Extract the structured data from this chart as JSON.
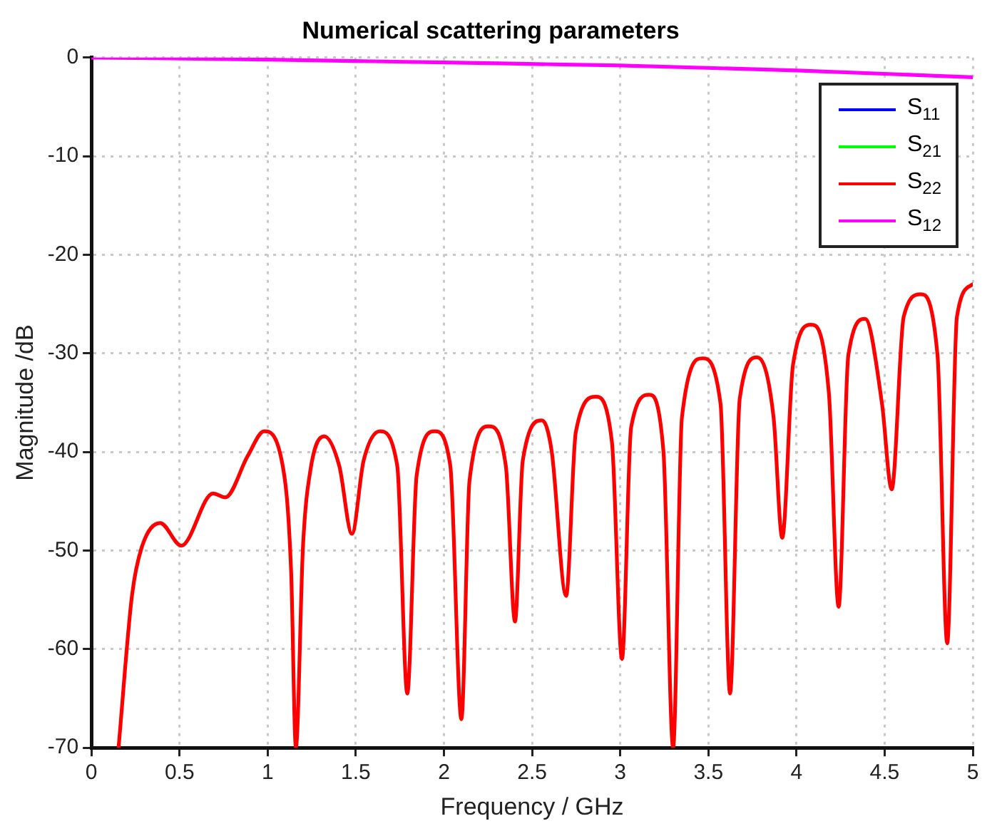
{
  "chart_data": {
    "type": "line",
    "title": "Numerical scattering parameters",
    "xlabel": "Frequency / GHz",
    "ylabel": "Magnitude /dB",
    "xlim": [
      0,
      5
    ],
    "xticks": [
      0,
      0.5,
      1,
      1.5,
      2,
      2.5,
      3,
      3.5,
      4,
      4.5,
      5
    ],
    "ylim": [
      -70,
      0
    ],
    "yticks": [
      -70,
      -60,
      -50,
      -40,
      -30,
      -20,
      -10,
      0
    ],
    "grid": true,
    "legend": "top right",
    "marker": "none",
    "line_style": "solid",
    "series": [
      {
        "name": "S$_{11}$",
        "color": "#0000ff"
      },
      {
        "name": "S$_{21}$",
        "color": "#00ff00"
      },
      {
        "name": "S$_{22}$",
        "color": "#ff0000",
        "x": [
          0.154,
          0.23,
          0.285,
          0.39,
          0.51,
          0.69,
          0.76,
          0.887,
          0.98,
          1.08,
          1.133,
          1.16,
          1.2,
          1.242,
          1.32,
          1.406,
          1.478,
          1.544,
          1.636,
          1.735,
          1.792,
          1.845,
          1.948,
          2.036,
          2.099,
          2.145,
          2.255,
          2.351,
          2.403,
          2.447,
          2.556,
          2.611,
          2.693,
          2.748,
          2.862,
          2.953,
          3.01,
          3.062,
          3.164,
          3.245,
          3.3,
          3.35,
          3.467,
          3.569,
          3.623,
          3.678,
          3.777,
          3.87,
          3.919,
          3.98,
          4.083,
          4.184,
          4.239,
          4.294,
          4.39,
          4.485,
          4.54,
          4.608,
          4.704,
          4.8,
          4.855,
          4.91,
          5
        ],
        "values": [
          -70,
          -54.6,
          -49.7,
          -47.2,
          -49.5,
          -44.2,
          -44.6,
          -40.4,
          -37.9,
          -40.9,
          -52.1,
          -70,
          -49.7,
          -41.9,
          -38.4,
          -41.4,
          -48.3,
          -40.9,
          -37.9,
          -41.4,
          -64.5,
          -42.4,
          -37.9,
          -41.4,
          -67.1,
          -42.9,
          -37.4,
          -41.4,
          -57.2,
          -40.9,
          -36.8,
          -39.9,
          -54.6,
          -38,
          -34.4,
          -39,
          -61,
          -37.5,
          -34.2,
          -39.9,
          -70,
          -36.5,
          -30.5,
          -35.1,
          -64.5,
          -34.6,
          -30.4,
          -36.5,
          -48.7,
          -31.2,
          -27.1,
          -34.1,
          -55.7,
          -30.2,
          -26.5,
          -35.1,
          -43.8,
          -26.3,
          -24,
          -30.2,
          -59.4,
          -26.3,
          -23
        ]
      },
      {
        "name": "S$_{12}$",
        "color": "#ff00ff",
        "x": [
          0,
          1,
          2,
          3,
          4,
          5
        ],
        "values": [
          0,
          -0.2,
          -0.5,
          -0.8,
          -1.3,
          -2
        ]
      }
    ]
  }
}
